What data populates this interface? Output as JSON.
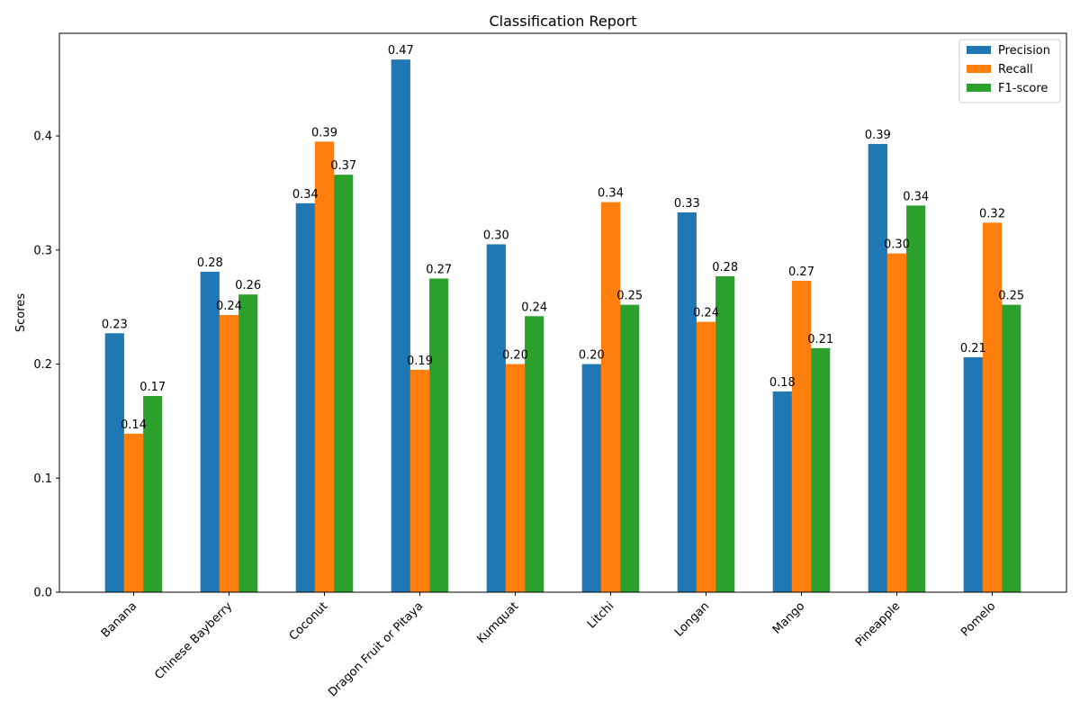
{
  "chart_data": {
    "type": "bar",
    "title": "Classification Report",
    "xlabel": "",
    "ylabel": "Scores",
    "categories": [
      "Banana",
      "Chinese Bayberry",
      "Coconut",
      "Dragon Fruit or Pitaya",
      "Kumquat",
      "Litchi",
      "Longan",
      "Mango",
      "Pineapple",
      "Pomelo"
    ],
    "series": [
      {
        "name": "Precision",
        "color": "#1f77b4",
        "values": [
          0.227,
          0.281,
          0.341,
          0.467,
          0.305,
          0.2,
          0.333,
          0.176,
          0.393,
          0.206
        ]
      },
      {
        "name": "Recall",
        "color": "#ff7f0e",
        "values": [
          0.139,
          0.243,
          0.395,
          0.195,
          0.2,
          0.342,
          0.237,
          0.273,
          0.297,
          0.324
        ]
      },
      {
        "name": "F1-score",
        "color": "#2ca02c",
        "values": [
          0.172,
          0.261,
          0.366,
          0.275,
          0.242,
          0.252,
          0.277,
          0.214,
          0.339,
          0.252
        ]
      }
    ],
    "data_labels": [
      [
        "0.23",
        "0.28",
        "0.34",
        "0.47",
        "0.30",
        "0.20",
        "0.33",
        "0.18",
        "0.39",
        "0.21"
      ],
      [
        "0.14",
        "0.24",
        "0.39",
        "0.19",
        "0.20",
        "0.34",
        "0.24",
        "0.27",
        "0.30",
        "0.32"
      ],
      [
        "0.17",
        "0.26",
        "0.37",
        "0.27",
        "0.24",
        "0.25",
        "0.28",
        "0.21",
        "0.34",
        "0.25"
      ]
    ],
    "yticks": [
      "0.0",
      "0.1",
      "0.2",
      "0.3",
      "0.4"
    ],
    "ylim": [
      0,
      0.49
    ],
    "grid": false,
    "legend_position": "top-right"
  }
}
